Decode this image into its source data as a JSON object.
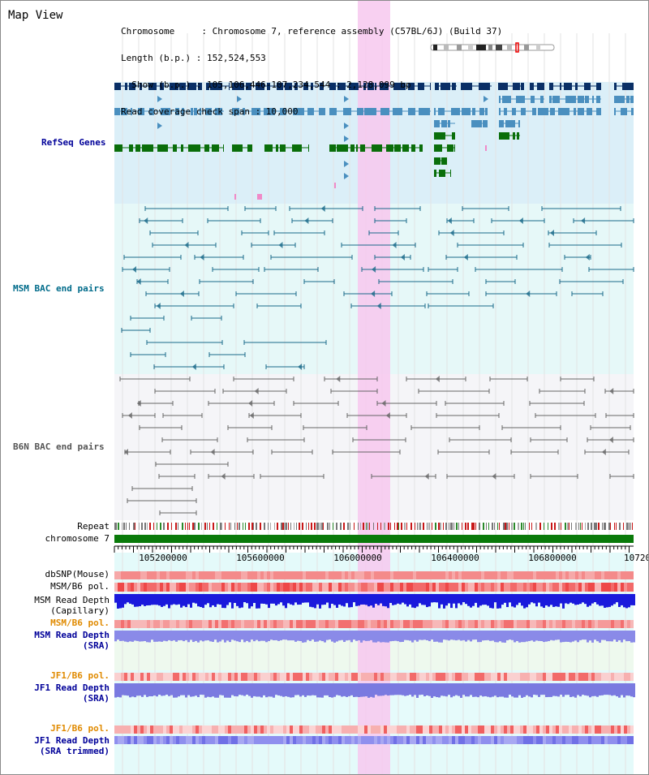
{
  "view_title": "Map View",
  "header": {
    "lines": [
      "Chromosome     : Chromosome 7, reference assembly (C57BL/6J) (Build 37)",
      "Length (b.p.) : 152,524,553",
      "  Show (b.p.) : 105,106,446-107,234,544 : 2,128,099 bp",
      "Read coverage check span : 10,000"
    ]
  },
  "tracks": {
    "refseq": "RefSeq Genes",
    "msm_bac": "MSM BAC end pairs",
    "b6n_bac": "B6N BAC end pairs",
    "repeat": "Repeat",
    "chromosome": "chromosome 7",
    "dbsnp": "dbSNP(Mouse)",
    "msm_b6_pol_1": "MSM/B6 pol.",
    "msm_depth_cap_1": "MSM Read Depth",
    "msm_depth_cap_2": "(Capillary)",
    "msm_b6_pol_2": "MSM/B6 pol.",
    "msm_depth_sra_1": "MSM Read Depth",
    "msm_depth_sra_2": "(SRA)",
    "jf1_b6_pol_1": "JF1/B6 pol.",
    "jf1_depth_sra_1": "JF1 Read Depth",
    "jf1_depth_sra_2": "(SRA)",
    "jf1_b6_pol_2": "JF1/B6 pol.",
    "jf1_depth_trim_1": "JF1 Read Depth",
    "jf1_depth_trim_2": "(SRA trimmed)"
  },
  "axis": {
    "ticks": [
      "105200000",
      "105600000",
      "106000000",
      "106400000",
      "106800000",
      "10720"
    ]
  },
  "colors": {
    "refseq_dark": "#0a2f66",
    "refseq_mid": "#4a8fbf",
    "refseq_green": "#0a6e0a",
    "msm_bac": "#1a6a8a",
    "b6n_bac": "#666666",
    "highlight": "#f7c8ee",
    "label_blue": "#000099",
    "label_orange": "#e08a00",
    "label_teal": "#006b8a",
    "label_navy": "#1a3a7a"
  },
  "icons": {
    "chromosome_ideogram": "chromosome-ideogram-icon"
  }
}
